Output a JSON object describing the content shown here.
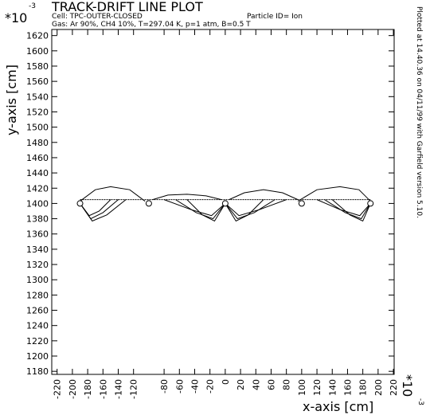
{
  "chart_data": {
    "type": "line",
    "title": "TRACK-DRIFT LINE PLOT",
    "y_scale": "*10",
    "y_scale_exp": "-3",
    "x_scale": "*10",
    "x_scale_exp": "-3",
    "cell": "Cell: TPC-OUTER-CLOSED",
    "particle": "Particle ID= Ion",
    "gas": "Gas: Ar 90%, CH4 10%, T=297.04 K, p=1 atm, B=0.5 T",
    "footer": "Plotted at 14.40.36 on 04/11/99 with Garfield version 5.10.",
    "xlabel": "x-axis [cm]",
    "ylabel": "y-axis [cm]",
    "xlim": [
      -227,
      221
    ],
    "ylim": [
      1176,
      1628
    ],
    "xticks": [
      -220,
      -200,
      -180,
      -160,
      -140,
      -120,
      -80,
      -60,
      -40,
      -20,
      0,
      20,
      40,
      60,
      80,
      100,
      120,
      140,
      160,
      180,
      200,
      220
    ],
    "yticks": [
      1180,
      1200,
      1220,
      1240,
      1260,
      1280,
      1300,
      1320,
      1340,
      1360,
      1380,
      1400,
      1420,
      1440,
      1460,
      1480,
      1500,
      1520,
      1540,
      1560,
      1580,
      1600,
      1620
    ],
    "wires": {
      "x": [
        -190,
        -100,
        0,
        100,
        190
      ],
      "y": [
        1400,
        1400,
        1400,
        1400,
        1400
      ]
    },
    "track": {
      "x": [
        -190,
        190
      ],
      "y": [
        1405,
        1405
      ]
    },
    "series": [
      {
        "x": [
          -190,
          -170,
          -150,
          -125,
          -105
        ],
        "values": [
          1403,
          1418,
          1422,
          1418,
          1403
        ]
      },
      {
        "x": [
          -95,
          -75,
          -50,
          -25,
          -5
        ],
        "values": [
          1405,
          1411,
          1412,
          1410,
          1405
        ]
      },
      {
        "x": [
          5,
          25,
          50,
          75,
          95
        ],
        "values": [
          1405,
          1414,
          1418,
          1414,
          1405
        ]
      },
      {
        "x": [
          95,
          120,
          150,
          175,
          190
        ],
        "values": [
          1403,
          1418,
          1422,
          1418,
          1403
        ]
      },
      {
        "x": [
          -150,
          -165,
          -178,
          -190
        ],
        "values": [
          1405,
          1390,
          1384,
          1400
        ]
      },
      {
        "x": [
          -140,
          -160,
          -176,
          -190
        ],
        "values": [
          1405,
          1388,
          1380,
          1400
        ]
      },
      {
        "x": [
          -130,
          -155,
          -174,
          -190
        ],
        "values": [
          1405,
          1385,
          1377,
          1400
        ]
      },
      {
        "x": [
          -80,
          -45,
          -18,
          0
        ],
        "values": [
          1405,
          1392,
          1384,
          1400
        ]
      },
      {
        "x": [
          -65,
          -38,
          -16,
          0
        ],
        "values": [
          1405,
          1388,
          1380,
          1400
        ]
      },
      {
        "x": [
          -50,
          -30,
          -14,
          0
        ],
        "values": [
          1405,
          1385,
          1377,
          1400
        ]
      },
      {
        "x": [
          80,
          45,
          18,
          0
        ],
        "values": [
          1405,
          1392,
          1384,
          1400
        ]
      },
      {
        "x": [
          65,
          38,
          16,
          0
        ],
        "values": [
          1405,
          1388,
          1380,
          1400
        ]
      },
      {
        "x": [
          50,
          30,
          14,
          0
        ],
        "values": [
          1405,
          1385,
          1377,
          1400
        ]
      },
      {
        "x": [
          120,
          150,
          176,
          190
        ],
        "values": [
          1405,
          1392,
          1384,
          1400
        ]
      },
      {
        "x": [
          130,
          157,
          178,
          190
        ],
        "values": [
          1405,
          1388,
          1380,
          1400
        ]
      },
      {
        "x": [
          140,
          163,
          180,
          190
        ],
        "values": [
          1405,
          1385,
          1377,
          1400
        ]
      }
    ]
  }
}
